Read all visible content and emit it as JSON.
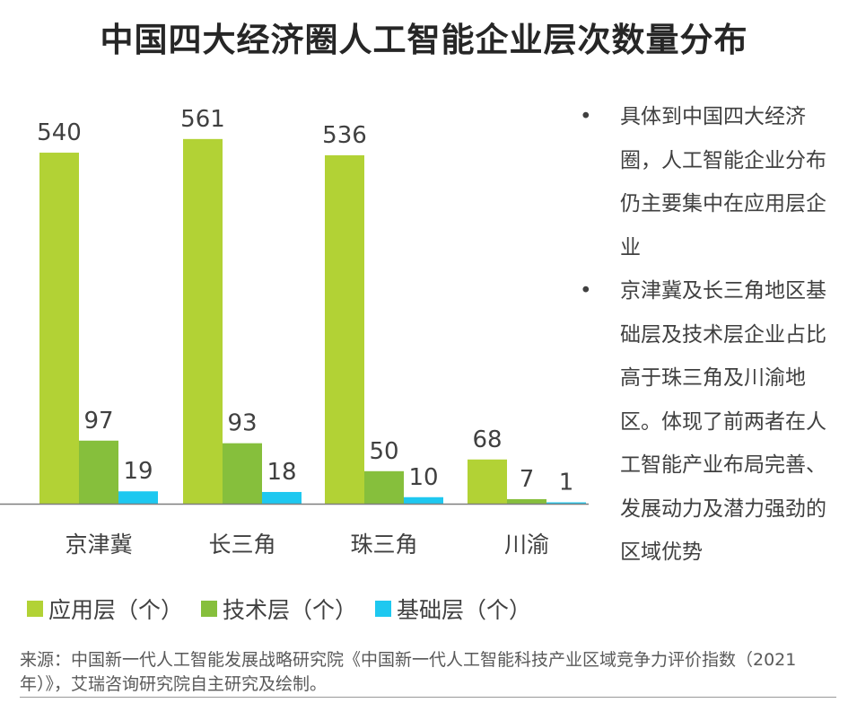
{
  "title": "中国四大经济圈人工智能企业层次数量分布",
  "chart_data": {
    "type": "bar",
    "categories": [
      "京津冀",
      "长三角",
      "珠三角",
      "川渝"
    ],
    "series": [
      {
        "name": "应用层（个）",
        "values": [
          540,
          561,
          536,
          68
        ],
        "color": "#b2d235"
      },
      {
        "name": "技术层（个）",
        "values": [
          97,
          93,
          50,
          7
        ],
        "color": "#86bf3c"
      },
      {
        "name": "基础层（个）",
        "values": [
          19,
          18,
          10,
          1
        ],
        "color": "#1ec8f0"
      }
    ],
    "ylim": [
      0,
      600
    ],
    "grid": false,
    "legend": "bottom"
  },
  "notes": [
    "具体到中国四大经济圈，人工智能企业分布仍主要集中在应用层企业",
    "京津冀及长三角地区基础层及技术层企业占比高于珠三角及川渝地区。体现了前两者在人工智能产业布局完善、发展动力及潜力强劲的区域优势"
  ],
  "bullet": "•",
  "source": "来源：中国新一代人工智能发展战略研究院《中国新一代人工智能科技产业区域竞争力评价指数（2021年）》，艾瑞咨询研究院自主研究及绘制。"
}
